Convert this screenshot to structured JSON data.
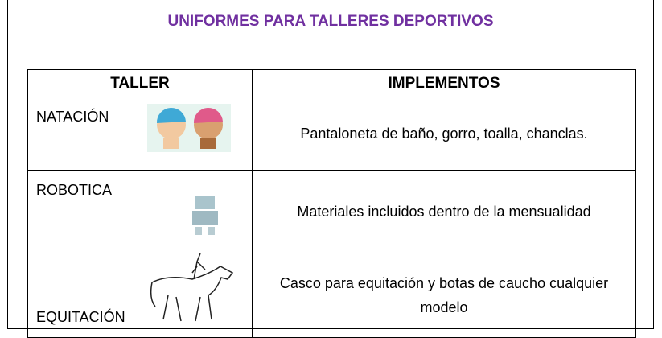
{
  "title": "UNIFORMES PARA TALLERES DEPORTIVOS",
  "table": {
    "headers": [
      "TALLER",
      "IMPLEMENTOS"
    ],
    "rows": [
      [
        "NATACIÓN",
        "Pantaloneta de baño, gorro, toalla, chanclas."
      ],
      [
        "ROBOTICA",
        "Materiales incluidos dentro de la mensualidad"
      ],
      [
        "EQUITACIÓN",
        "Casco para equitación y botas de caucho cualquier modelo"
      ]
    ]
  }
}
